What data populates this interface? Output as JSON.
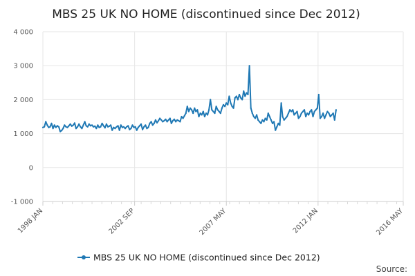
{
  "chart_data": {
    "type": "line",
    "title": "MBS 25 UK NO HOME (discontinued since Dec 2012)",
    "xlabel": "",
    "ylabel": "",
    "x_start": "1998 JAN",
    "x_end": "2012 DEC",
    "x_ticks": [
      "1998 JAN",
      "2002 SEP",
      "2007 MAY",
      "2012 JAN",
      "2016 MAY"
    ],
    "y_ticks": [
      4000,
      3000,
      2000,
      1000,
      0,
      -1000
    ],
    "y_tick_labels": [
      "4 000",
      "3 000",
      "2 000",
      "1 000",
      "0",
      "-1 000"
    ],
    "ylim": [
      -1000,
      4000
    ],
    "grid": true,
    "legend_position": "bottom",
    "series": [
      {
        "name": "MBS 25 UK NO HOME (discontinued since Dec 2012)",
        "color": "#1f78b4",
        "values": [
          1180,
          1200,
          1350,
          1250,
          1180,
          1200,
          1300,
          1150,
          1250,
          1180,
          1230,
          1200,
          1060,
          1090,
          1150,
          1250,
          1200,
          1180,
          1230,
          1280,
          1220,
          1250,
          1310,
          1150,
          1200,
          1280,
          1200,
          1150,
          1250,
          1350,
          1230,
          1200,
          1280,
          1230,
          1250,
          1200,
          1220,
          1150,
          1250,
          1180,
          1200,
          1300,
          1230,
          1170,
          1280,
          1200,
          1220,
          1250,
          1100,
          1180,
          1150,
          1200,
          1230,
          1100,
          1250,
          1180,
          1200,
          1150,
          1200,
          1230,
          1120,
          1150,
          1250,
          1180,
          1200,
          1100,
          1180,
          1230,
          1280,
          1120,
          1200,
          1250,
          1150,
          1180,
          1300,
          1350,
          1250,
          1300,
          1400,
          1320,
          1380,
          1450,
          1400,
          1350,
          1380,
          1420,
          1350,
          1400,
          1450,
          1300,
          1380,
          1420,
          1350,
          1400,
          1380,
          1350,
          1500,
          1450,
          1520,
          1600,
          1800,
          1650,
          1750,
          1700,
          1600,
          1750,
          1650,
          1700,
          1500,
          1600,
          1550,
          1650,
          1500,
          1600,
          1550,
          1700,
          2000,
          1700,
          1650,
          1600,
          1800,
          1700,
          1650,
          1600,
          1750,
          1850,
          1800,
          1900,
          1850,
          2100,
          1900,
          1800,
          1750,
          2050,
          2100,
          2000,
          2150,
          2050,
          2000,
          2250,
          2100,
          2200,
          2150,
          3000,
          1750,
          1600,
          1500,
          1450,
          1550,
          1400,
          1350,
          1300,
          1400,
          1350,
          1450,
          1400,
          1600,
          1500,
          1400,
          1300,
          1350,
          1100,
          1200,
          1300,
          1250,
          1900,
          1500,
          1400,
          1450,
          1500,
          1600,
          1700,
          1650,
          1700,
          1550,
          1600,
          1650,
          1450,
          1500,
          1600,
          1650,
          1700,
          1500,
          1600,
          1550,
          1650,
          1700,
          1500,
          1650,
          1700,
          1750,
          2150,
          1450,
          1500,
          1600,
          1450,
          1550,
          1650,
          1600,
          1500,
          1550,
          1600,
          1400,
          1700
        ]
      }
    ]
  },
  "footer": {
    "source_label": "Source:"
  }
}
